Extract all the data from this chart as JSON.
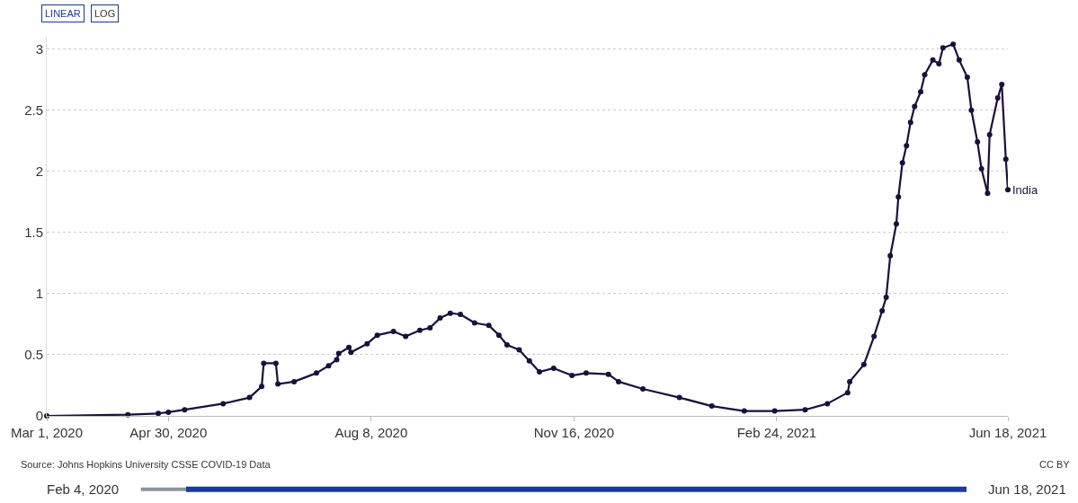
{
  "chart_data": {
    "type": "line",
    "x": [
      "2020-03-01",
      "2020-04-10",
      "2020-04-25",
      "2020-04-30",
      "2020-05-08",
      "2020-05-27",
      "2020-06-09",
      "2020-06-15",
      "2020-06-16",
      "2020-06-22",
      "2020-06-23",
      "2020-07-01",
      "2020-07-12",
      "2020-07-18",
      "2020-07-22",
      "2020-07-23",
      "2020-07-28",
      "2020-07-29",
      "2020-08-06",
      "2020-08-11",
      "2020-08-19",
      "2020-08-25",
      "2020-09-01",
      "2020-09-06",
      "2020-09-11",
      "2020-09-16",
      "2020-09-21",
      "2020-09-28",
      "2020-10-05",
      "2020-10-10",
      "2020-10-14",
      "2020-10-20",
      "2020-10-25",
      "2020-10-30",
      "2020-11-06",
      "2020-11-15",
      "2020-11-22",
      "2020-12-03",
      "2020-12-08",
      "2020-12-20",
      "2021-01-07",
      "2021-01-23",
      "2021-02-08",
      "2021-02-23",
      "2021-03-10",
      "2021-03-21",
      "2021-03-31",
      "2021-04-01",
      "2021-04-08",
      "2021-04-13",
      "2021-04-17",
      "2021-04-19",
      "2021-04-21",
      "2021-04-24",
      "2021-04-25",
      "2021-04-27",
      "2021-04-29",
      "2021-05-01",
      "2021-05-03",
      "2021-05-06",
      "2021-05-08",
      "2021-05-12",
      "2021-05-15",
      "2021-05-17",
      "2021-05-22",
      "2021-05-25",
      "2021-05-29",
      "2021-05-31",
      "2021-06-03",
      "2021-06-05",
      "2021-06-08",
      "2021-06-09",
      "2021-06-13",
      "2021-06-15",
      "2021-06-17",
      "2021-06-18"
    ],
    "series": [
      {
        "name": "India",
        "color": "#1c0f3a",
        "values": [
          0,
          0.01,
          0.02,
          0.03,
          0.05,
          0.1,
          0.15,
          0.24,
          0.43,
          0.43,
          0.26,
          0.28,
          0.35,
          0.41,
          0.46,
          0.51,
          0.56,
          0.52,
          0.59,
          0.66,
          0.69,
          0.65,
          0.7,
          0.72,
          0.8,
          0.84,
          0.83,
          0.76,
          0.74,
          0.66,
          0.58,
          0.54,
          0.45,
          0.36,
          0.39,
          0.33,
          0.35,
          0.34,
          0.28,
          0.22,
          0.15,
          0.08,
          0.04,
          0.04,
          0.05,
          0.1,
          0.19,
          0.28,
          0.42,
          0.65,
          0.86,
          0.97,
          1.31,
          1.57,
          1.79,
          2.07,
          2.21,
          2.4,
          2.53,
          2.65,
          2.79,
          2.91,
          2.88,
          3.01,
          3.04,
          2.91,
          2.77,
          2.5,
          2.24,
          2.02,
          1.82,
          2.3,
          2.6,
          2.71,
          2.1,
          1.85
        ]
      }
    ],
    "xlim": [
      "2020-03-01",
      "2021-06-18"
    ],
    "xticks": [
      {
        "value": "2020-03-01",
        "label": "Mar 1, 2020"
      },
      {
        "value": "2020-04-30",
        "label": "Apr 30, 2020"
      },
      {
        "value": "2020-08-08",
        "label": "Aug 8, 2020"
      },
      {
        "value": "2020-11-16",
        "label": "Nov 16, 2020"
      },
      {
        "value": "2021-02-24",
        "label": "Feb 24, 2021"
      },
      {
        "value": "2021-06-18",
        "label": "Jun 18, 2021"
      }
    ],
    "ylim": [
      0,
      3.1
    ],
    "yticks": [
      0,
      0.5,
      1,
      1.5,
      2,
      2.5,
      3
    ],
    "grid": "y",
    "legend": false,
    "marker": "circle",
    "line_style": "solid",
    "annotations": [
      "LINEAR",
      "LOG",
      "Source: Johns Hopkins University CSSE COVID-19 Data",
      "CC BY",
      "Feb 4, 2020",
      "Jun 18, 2021"
    ]
  }
}
